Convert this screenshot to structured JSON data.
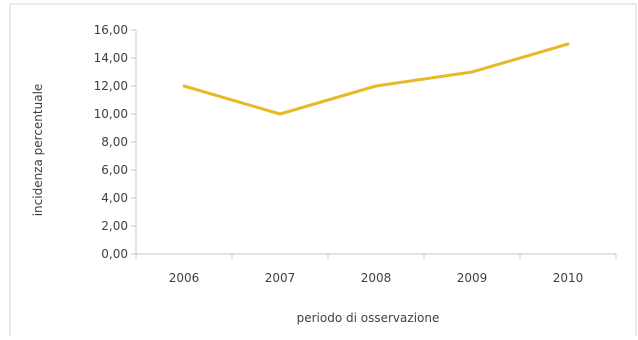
{
  "chart_data": {
    "type": "line",
    "title": "",
    "xlabel": "periodo di osservazione",
    "ylabel": "incidenza percentuale",
    "categories": [
      "2006",
      "2007",
      "2008",
      "2009",
      "2010"
    ],
    "series": [
      {
        "values": [
          12.0,
          10.0,
          12.0,
          13.0,
          15.0
        ],
        "color": "#e8b828"
      }
    ],
    "ylim": [
      0,
      16
    ],
    "yticks": [
      0,
      2,
      4,
      6,
      8,
      10,
      12,
      14,
      16
    ],
    "ytick_labels": [
      "0,00",
      "2,00",
      "4,00",
      "6,00",
      "8,00",
      "10,00",
      "12,00",
      "14,00",
      "16,00"
    ],
    "grid": false,
    "legend": "none",
    "axis_color": "#c8c8c8",
    "text_color": "#404040"
  }
}
